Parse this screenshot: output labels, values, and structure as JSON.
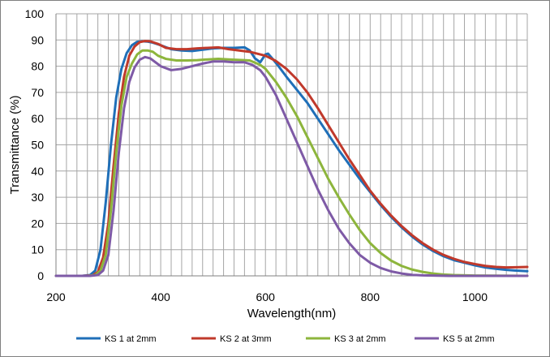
{
  "chart_data": {
    "type": "line",
    "title": "",
    "xlabel": "Wavelength(nm)",
    "ylabel": "Transmittance (%)",
    "xlim": [
      200,
      1100
    ],
    "ylim": [
      0,
      100
    ],
    "x_ticks": [
      200,
      400,
      600,
      800,
      1000
    ],
    "x_tick_labels": [
      "200",
      "400",
      "600",
      "800",
      "1000"
    ],
    "x_grid_step": 20,
    "y_ticks": [
      0,
      10,
      20,
      30,
      40,
      50,
      60,
      70,
      80,
      90,
      100
    ],
    "y_tick_labels": [
      "0",
      "10",
      "20",
      "30",
      "40",
      "50",
      "60",
      "70",
      "80",
      "90",
      "100"
    ],
    "grid": true,
    "legend_position": "bottom",
    "series": [
      {
        "name": "KS 1 at 2mm",
        "color": "#1f6fb8",
        "points": [
          [
            200,
            0
          ],
          [
            250,
            0
          ],
          [
            265,
            0.3
          ],
          [
            275,
            2
          ],
          [
            285,
            10
          ],
          [
            295,
            28
          ],
          [
            305,
            50
          ],
          [
            315,
            68
          ],
          [
            325,
            79
          ],
          [
            335,
            85
          ],
          [
            345,
            88
          ],
          [
            355,
            89.3
          ],
          [
            365,
            89.5
          ],
          [
            375,
            89.4
          ],
          [
            385,
            89
          ],
          [
            400,
            88
          ],
          [
            420,
            86.5
          ],
          [
            440,
            86
          ],
          [
            460,
            85.8
          ],
          [
            480,
            86.3
          ],
          [
            500,
            86.8
          ],
          [
            520,
            87
          ],
          [
            540,
            87
          ],
          [
            560,
            87.2
          ],
          [
            570,
            86
          ],
          [
            580,
            83
          ],
          [
            590,
            81.5
          ],
          [
            600,
            84.5
          ],
          [
            605,
            84.8
          ],
          [
            615,
            82.5
          ],
          [
            625,
            80
          ],
          [
            640,
            76
          ],
          [
            660,
            71
          ],
          [
            680,
            66
          ],
          [
            700,
            60
          ],
          [
            720,
            54
          ],
          [
            740,
            48
          ],
          [
            760,
            42.5
          ],
          [
            780,
            37
          ],
          [
            800,
            32
          ],
          [
            820,
            27
          ],
          [
            840,
            22.5
          ],
          [
            860,
            18.5
          ],
          [
            880,
            15
          ],
          [
            900,
            12
          ],
          [
            920,
            9.5
          ],
          [
            940,
            7.5
          ],
          [
            960,
            6
          ],
          [
            980,
            5
          ],
          [
            1000,
            4
          ],
          [
            1020,
            3.2
          ],
          [
            1040,
            2.7
          ],
          [
            1060,
            2.3
          ],
          [
            1080,
            2
          ],
          [
            1100,
            1.8
          ]
        ]
      },
      {
        "name": "KS 2 at 3mm",
        "color": "#c0392b",
        "points": [
          [
            200,
            0
          ],
          [
            250,
            0
          ],
          [
            270,
            0.2
          ],
          [
            280,
            1.5
          ],
          [
            290,
            7
          ],
          [
            300,
            20
          ],
          [
            310,
            42
          ],
          [
            320,
            62
          ],
          [
            330,
            76
          ],
          [
            340,
            84
          ],
          [
            350,
            87.5
          ],
          [
            360,
            89.2
          ],
          [
            370,
            89.6
          ],
          [
            380,
            89.5
          ],
          [
            395,
            88.5
          ],
          [
            410,
            87
          ],
          [
            430,
            86.5
          ],
          [
            450,
            86.5
          ],
          [
            470,
            86.8
          ],
          [
            490,
            87
          ],
          [
            510,
            87.2
          ],
          [
            530,
            86.5
          ],
          [
            550,
            86
          ],
          [
            570,
            85.5
          ],
          [
            590,
            84.5
          ],
          [
            600,
            84
          ],
          [
            620,
            82
          ],
          [
            640,
            79
          ],
          [
            660,
            75
          ],
          [
            680,
            70
          ],
          [
            700,
            64
          ],
          [
            720,
            57.5
          ],
          [
            740,
            51
          ],
          [
            760,
            44.5
          ],
          [
            780,
            38.5
          ],
          [
            800,
            32.5
          ],
          [
            820,
            27.5
          ],
          [
            840,
            23
          ],
          [
            860,
            19
          ],
          [
            880,
            15.5
          ],
          [
            900,
            12.5
          ],
          [
            920,
            10
          ],
          [
            940,
            8
          ],
          [
            960,
            6.5
          ],
          [
            980,
            5.3
          ],
          [
            1000,
            4.5
          ],
          [
            1020,
            3.8
          ],
          [
            1040,
            3.4
          ],
          [
            1060,
            3.2
          ],
          [
            1080,
            3.3
          ],
          [
            1100,
            3.4
          ]
        ]
      },
      {
        "name": "KS 3 at 2mm",
        "color": "#8db53c",
        "points": [
          [
            200,
            0
          ],
          [
            260,
            0
          ],
          [
            275,
            0.3
          ],
          [
            285,
            2
          ],
          [
            295,
            8
          ],
          [
            305,
            25
          ],
          [
            315,
            47
          ],
          [
            325,
            65
          ],
          [
            335,
            76
          ],
          [
            345,
            81
          ],
          [
            355,
            84.5
          ],
          [
            365,
            86
          ],
          [
            375,
            86
          ],
          [
            385,
            85.5
          ],
          [
            395,
            84
          ],
          [
            410,
            82.8
          ],
          [
            430,
            82.2
          ],
          [
            450,
            82.2
          ],
          [
            470,
            82.3
          ],
          [
            490,
            82.6
          ],
          [
            510,
            82.8
          ],
          [
            530,
            82.6
          ],
          [
            550,
            82.4
          ],
          [
            570,
            82.2
          ],
          [
            590,
            80.5
          ],
          [
            600,
            79
          ],
          [
            620,
            74
          ],
          [
            640,
            68
          ],
          [
            660,
            61
          ],
          [
            680,
            53
          ],
          [
            700,
            45
          ],
          [
            720,
            37
          ],
          [
            740,
            30
          ],
          [
            760,
            23.5
          ],
          [
            780,
            17.5
          ],
          [
            800,
            12.5
          ],
          [
            820,
            8.7
          ],
          [
            840,
            5.8
          ],
          [
            860,
            3.8
          ],
          [
            880,
            2.4
          ],
          [
            900,
            1.5
          ],
          [
            920,
            0.9
          ],
          [
            940,
            0.5
          ],
          [
            960,
            0.3
          ],
          [
            1000,
            0.1
          ],
          [
            1100,
            0
          ]
        ]
      },
      {
        "name": "KS 5 at 2mm",
        "color": "#7e5aa6",
        "points": [
          [
            200,
            0
          ],
          [
            265,
            0
          ],
          [
            280,
            0.3
          ],
          [
            290,
            2
          ],
          [
            300,
            8
          ],
          [
            310,
            25
          ],
          [
            320,
            47
          ],
          [
            330,
            64
          ],
          [
            340,
            74
          ],
          [
            350,
            79.5
          ],
          [
            360,
            82.5
          ],
          [
            370,
            83.5
          ],
          [
            380,
            83
          ],
          [
            390,
            81.5
          ],
          [
            400,
            80
          ],
          [
            420,
            78.5
          ],
          [
            440,
            79
          ],
          [
            460,
            80
          ],
          [
            480,
            81
          ],
          [
            500,
            81.8
          ],
          [
            520,
            81.8
          ],
          [
            540,
            81.5
          ],
          [
            560,
            81.5
          ],
          [
            575,
            80.5
          ],
          [
            590,
            78.5
          ],
          [
            600,
            76
          ],
          [
            620,
            69
          ],
          [
            640,
            60
          ],
          [
            660,
            51
          ],
          [
            680,
            42
          ],
          [
            700,
            33
          ],
          [
            720,
            25
          ],
          [
            740,
            18
          ],
          [
            760,
            12.5
          ],
          [
            780,
            8
          ],
          [
            800,
            5
          ],
          [
            820,
            3
          ],
          [
            840,
            1.7
          ],
          [
            860,
            0.9
          ],
          [
            880,
            0.4
          ],
          [
            900,
            0.2
          ],
          [
            950,
            0
          ],
          [
            1100,
            0
          ]
        ]
      }
    ]
  }
}
